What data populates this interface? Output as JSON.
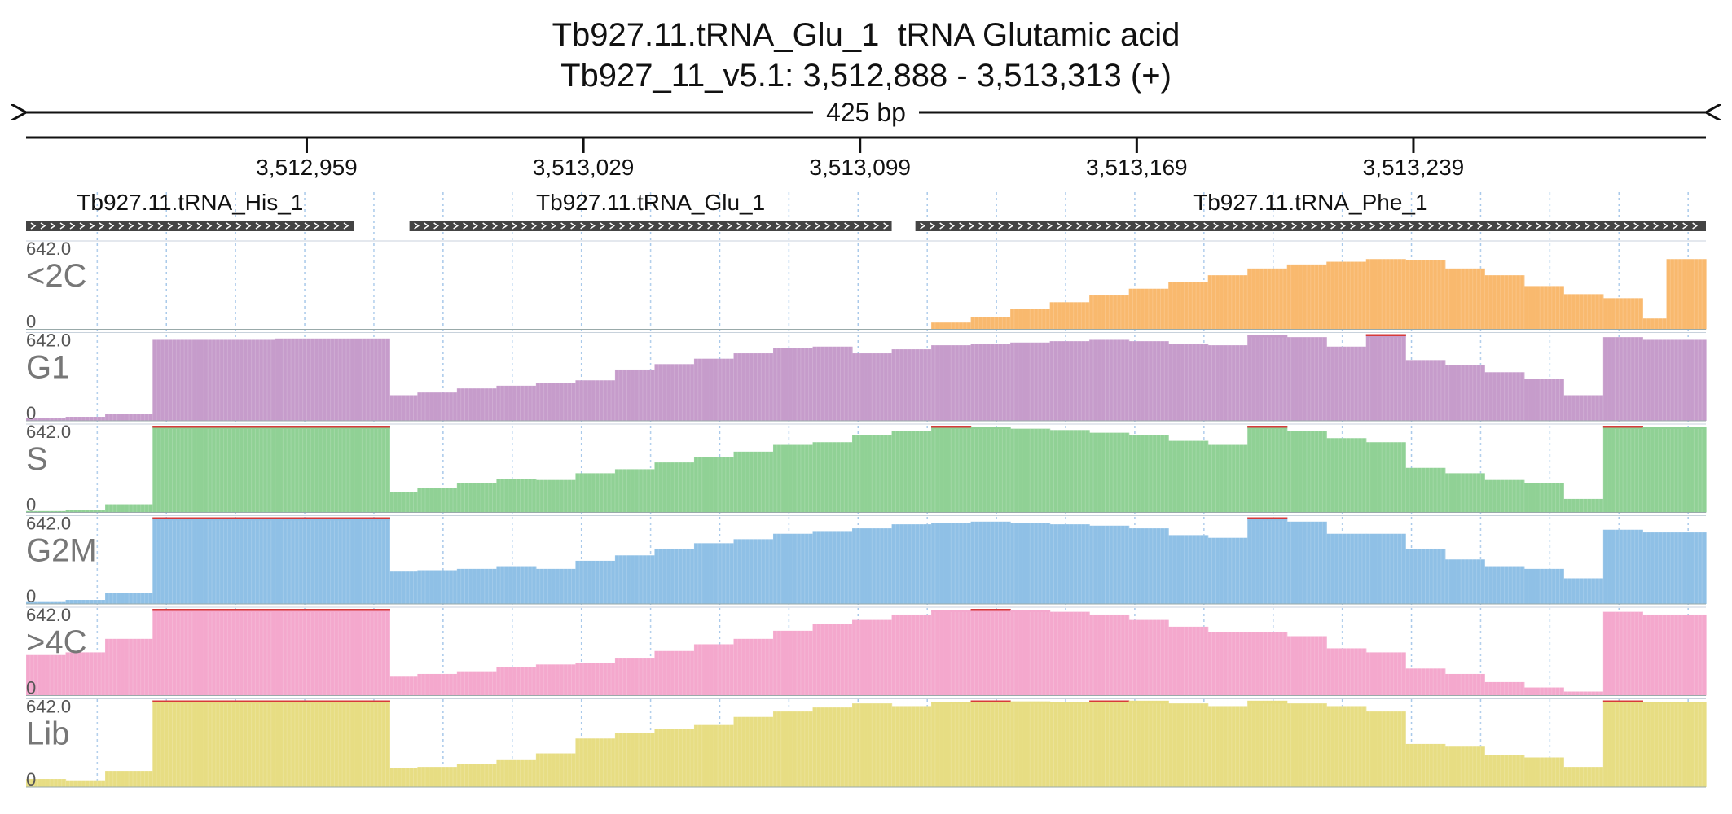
{
  "header": {
    "title_line1": "Tb927.11.tRNA_Glu_1  tRNA Glutamic acid",
    "title_line2": "Tb927_11_v5.1: 3,512,888 - 3,513,313 (+)",
    "span_label": "425 bp"
  },
  "chart_data": {
    "type": "area",
    "x_range": [
      3512888,
      3513313
    ],
    "ticks": [
      {
        "pos": 3512959,
        "label": "3,512,959"
      },
      {
        "pos": 3513029,
        "label": "3,513,029"
      },
      {
        "pos": 3513099,
        "label": "3,513,099"
      },
      {
        "pos": 3513169,
        "label": "3,513,169"
      },
      {
        "pos": 3513239,
        "label": "3,513,239"
      }
    ],
    "genes": [
      {
        "name": "Tb927.11.tRNA_His_1",
        "start": 3512888,
        "end": 3512971,
        "strand": "+"
      },
      {
        "name": "Tb927.11.tRNA_Glu_1",
        "start": 3512985,
        "end": 3513107,
        "strand": "+"
      },
      {
        "name": "Tb927.11.tRNA_Phe_1",
        "start": 3513113,
        "end": 3513313,
        "strand": "+"
      }
    ],
    "bin_edges": [
      3512888,
      3512898,
      3512908,
      3512920,
      3512951,
      3512980,
      3512987,
      3512997,
      3513007,
      3513017,
      3513027,
      3513037,
      3513047,
      3513057,
      3513067,
      3513077,
      3513087,
      3513097,
      3513107,
      3513117,
      3513127,
      3513137,
      3513147,
      3513157,
      3513167,
      3513177,
      3513187,
      3513197,
      3513207,
      3513217,
      3513227,
      3513237,
      3513247,
      3513257,
      3513267,
      3513277,
      3513287,
      3513297,
      3513303,
      3513313
    ],
    "ylim": [
      0,
      642.0
    ],
    "scale_max_label": "642.0",
    "scale_min_label": "0",
    "series": [
      {
        "name": "<2C",
        "color": "#f9b96e",
        "values": [
          0,
          0,
          0,
          0,
          0,
          0,
          0,
          0,
          0,
          0,
          0,
          0,
          0,
          0,
          0,
          0,
          0,
          0,
          0,
          50,
          90,
          150,
          200,
          250,
          300,
          350,
          400,
          450,
          480,
          500,
          520,
          510,
          450,
          400,
          320,
          260,
          230,
          80,
          520,
          500
        ]
      },
      {
        "name": "G1",
        "color": "#c69ccb",
        "values": [
          20,
          30,
          50,
          600,
          610,
          190,
          210,
          240,
          260,
          280,
          300,
          380,
          420,
          460,
          500,
          540,
          550,
          500,
          530,
          560,
          570,
          580,
          590,
          600,
          590,
          570,
          560,
          635,
          620,
          550,
          642,
          450,
          410,
          360,
          310,
          190,
          620,
          600,
          600,
          610
        ]
      },
      {
        "name": "S",
        "color": "#90d195",
        "values": [
          10,
          20,
          60,
          642,
          642,
          150,
          180,
          220,
          250,
          240,
          290,
          320,
          370,
          410,
          450,
          500,
          520,
          570,
          600,
          642,
          630,
          620,
          610,
          590,
          570,
          530,
          500,
          642,
          600,
          550,
          520,
          330,
          290,
          240,
          220,
          100,
          642,
          630,
          630,
          640
        ]
      },
      {
        "name": "G2M",
        "color": "#8fc0e6",
        "values": [
          20,
          30,
          80,
          642,
          642,
          240,
          250,
          260,
          280,
          260,
          320,
          360,
          410,
          450,
          480,
          520,
          540,
          560,
          590,
          600,
          610,
          600,
          590,
          580,
          560,
          510,
          490,
          642,
          610,
          520,
          520,
          410,
          330,
          280,
          260,
          190,
          550,
          530,
          530,
          520
        ]
      },
      {
        "name": ">4C",
        "color": "#f4a8cd",
        "values": [
          300,
          320,
          420,
          642,
          642,
          140,
          160,
          180,
          210,
          230,
          240,
          280,
          330,
          380,
          420,
          480,
          530,
          560,
          600,
          630,
          642,
          630,
          620,
          600,
          560,
          510,
          470,
          470,
          440,
          350,
          320,
          200,
          160,
          100,
          60,
          30,
          620,
          600,
          600,
          610
        ]
      },
      {
        "name": "Lib",
        "color": "#e7dd83",
        "values": [
          60,
          50,
          120,
          642,
          642,
          140,
          150,
          170,
          200,
          250,
          360,
          400,
          430,
          460,
          520,
          560,
          590,
          620,
          600,
          630,
          642,
          635,
          630,
          642,
          640,
          620,
          600,
          640,
          620,
          600,
          560,
          320,
          300,
          240,
          220,
          150,
          642,
          630,
          630,
          642
        ]
      }
    ]
  }
}
